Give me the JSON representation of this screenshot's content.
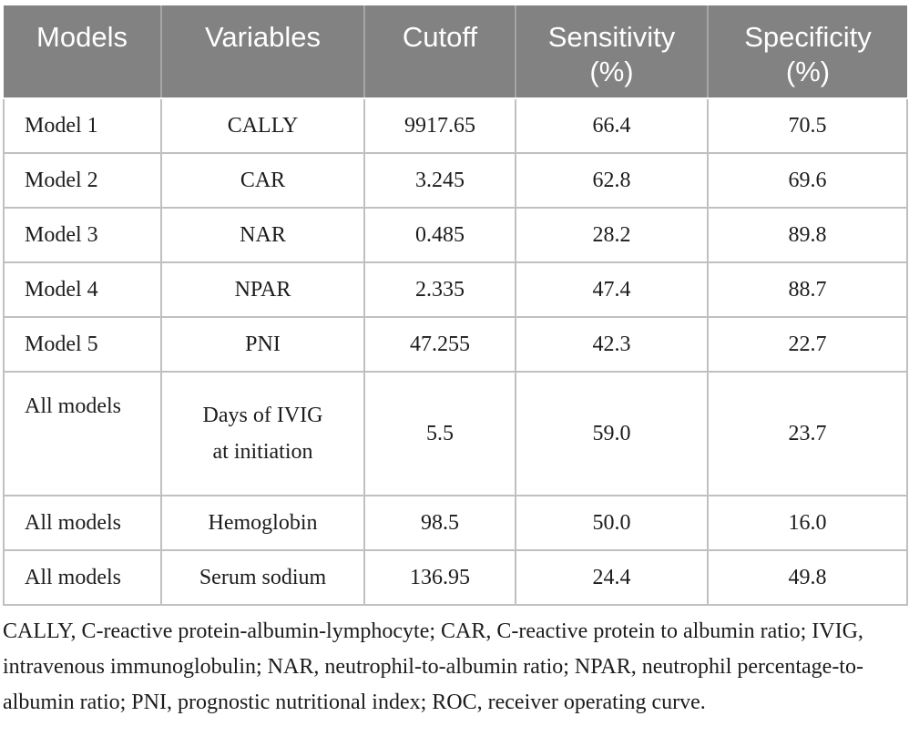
{
  "table": {
    "header": {
      "models": "Models",
      "variables": "Variables",
      "cutoff": "Cutoff",
      "sensitivity_line1": "Sensitivity",
      "sensitivity_line2": "(%)",
      "specificity_line1": "Specificity",
      "specificity_line2": "(%)"
    },
    "rows": [
      {
        "model": "Model 1",
        "variable": "CALLY",
        "cutoff": "9917.65",
        "sensitivity": "66.4",
        "specificity": "70.5"
      },
      {
        "model": "Model 2",
        "variable": "CAR",
        "cutoff": "3.245",
        "sensitivity": "62.8",
        "specificity": "69.6"
      },
      {
        "model": "Model 3",
        "variable": "NAR",
        "cutoff": "0.485",
        "sensitivity": "28.2",
        "specificity": "89.8"
      },
      {
        "model": "Model 4",
        "variable": "NPAR",
        "cutoff": "2.335",
        "sensitivity": "47.4",
        "specificity": "88.7"
      },
      {
        "model": "Model 5",
        "variable": "PNI",
        "cutoff": "47.255",
        "sensitivity": "42.3",
        "specificity": "22.7"
      },
      {
        "model": "All models",
        "variable": "Days of IVIG",
        "variable_line2": "at initiation",
        "cutoff": "5.5",
        "sensitivity": "59.0",
        "specificity": "23.7"
      },
      {
        "model": "All models",
        "variable": "Hemoglobin",
        "cutoff": "98.5",
        "sensitivity": "50.0",
        "specificity": "16.0"
      },
      {
        "model": "All models",
        "variable": "Serum sodium",
        "cutoff": "136.95",
        "sensitivity": "24.4",
        "specificity": "49.8"
      }
    ]
  },
  "footnote": "CALLY, C-reactive protein-albumin-lymphocyte; CAR, C-reactive protein to albumin ratio; IVIG, intravenous immunoglobulin; NAR, neutrophil-to-albumin ratio; NPAR, neutrophil percentage-to-albumin ratio; PNI, prognostic nutritional index; ROC, receiver operating curve.",
  "colors": {
    "header_bg": "#828282",
    "header_text": "#ffffff",
    "header_divider": "#a6a6a6",
    "cell_border": "#c0c0c0",
    "body_text": "#1c1c1c"
  }
}
